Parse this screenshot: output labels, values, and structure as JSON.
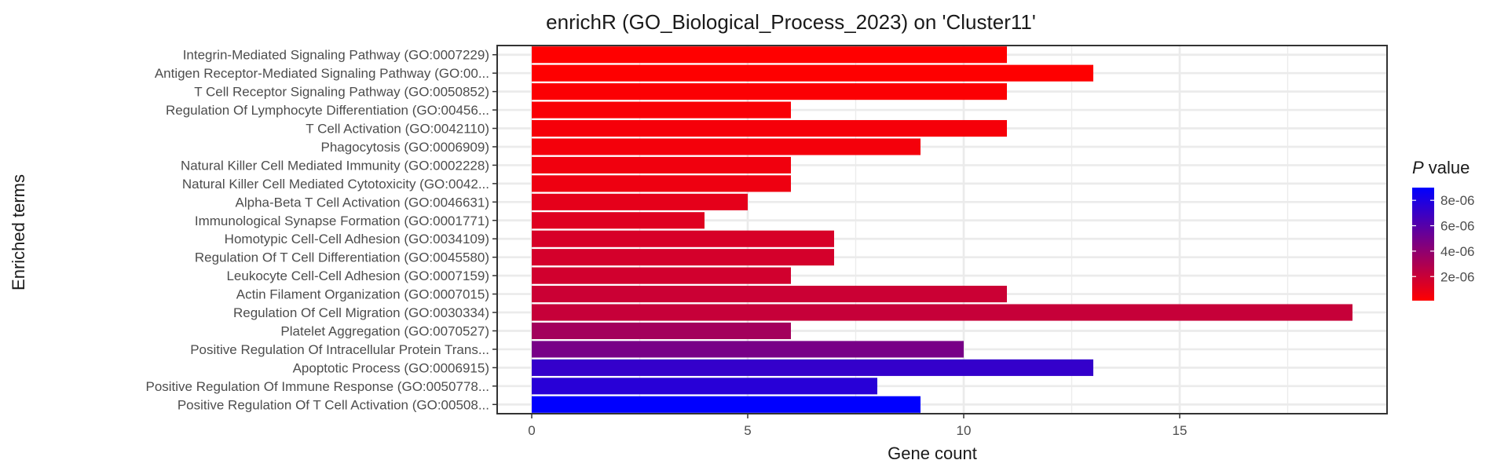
{
  "chart_data": {
    "type": "bar",
    "orientation": "horizontal",
    "title": "enrichR (GO_Biological_Process_2023) on 'Cluster11'",
    "xlabel": "Gene count",
    "ylabel": "Enriched terms",
    "xlim": [
      -0.8,
      19.8
    ],
    "x_ticks": [
      0,
      5,
      10,
      15
    ],
    "x_tick_labels": [
      "0",
      "5",
      "10",
      "15"
    ],
    "grid": true,
    "legend_position": "right",
    "legend": {
      "title_italic": "P",
      "title_rest": " value",
      "ticks": [
        2e-06,
        4e-06,
        6e-06,
        8e-06
      ],
      "tick_labels": [
        "2e-06",
        "4e-06",
        "6e-06",
        "8e-06"
      ],
      "range": [
        1e-07,
        9e-06
      ],
      "color_low": "#ff0000",
      "color_high": "#0000ff"
    },
    "categories": [
      "Integrin-Mediated Signaling Pathway (GO:0007229)",
      "Antigen Receptor-Mediated Signaling Pathway (GO:00...",
      "T Cell Receptor Signaling Pathway (GO:0050852)",
      "Regulation Of Lymphocyte Differentiation (GO:00456...",
      "T Cell Activation (GO:0042110)",
      "Phagocytosis (GO:0006909)",
      "Natural Killer Cell Mediated Immunity (GO:0002228)",
      "Natural Killer Cell Mediated Cytotoxicity (GO:0042...",
      "Alpha-Beta T Cell Activation (GO:0046631)",
      "Immunological Synapse Formation (GO:0001771)",
      "Homotypic Cell-Cell Adhesion (GO:0034109)",
      "Regulation Of T Cell Differentiation (GO:0045580)",
      "Leukocyte Cell-Cell Adhesion (GO:0007159)",
      "Actin Filament Organization (GO:0007015)",
      "Regulation Of Cell Migration (GO:0030334)",
      "Platelet Aggregation (GO:0070527)",
      "Positive Regulation Of Intracellular Protein Trans...",
      "Apoptotic Process (GO:0006915)",
      "Positive Regulation Of Immune Response (GO:0050778...",
      "Positive Regulation Of T Cell Activation (GO:00508..."
    ],
    "values": [
      11,
      13,
      11,
      6,
      11,
      9,
      6,
      6,
      5,
      4,
      7,
      7,
      6,
      11,
      19,
      6,
      10,
      13,
      8,
      9
    ],
    "p_values": [
      1e-07,
      1.5e-07,
      2e-07,
      3e-07,
      4e-07,
      5e-07,
      6e-07,
      7e-07,
      1e-06,
      1.2e-06,
      1.5e-06,
      1.6e-06,
      1.7e-06,
      1.9e-06,
      2.1e-06,
      3.3e-06,
      4.8e-06,
      7.2e-06,
      7.6e-06,
      9e-06
    ]
  }
}
